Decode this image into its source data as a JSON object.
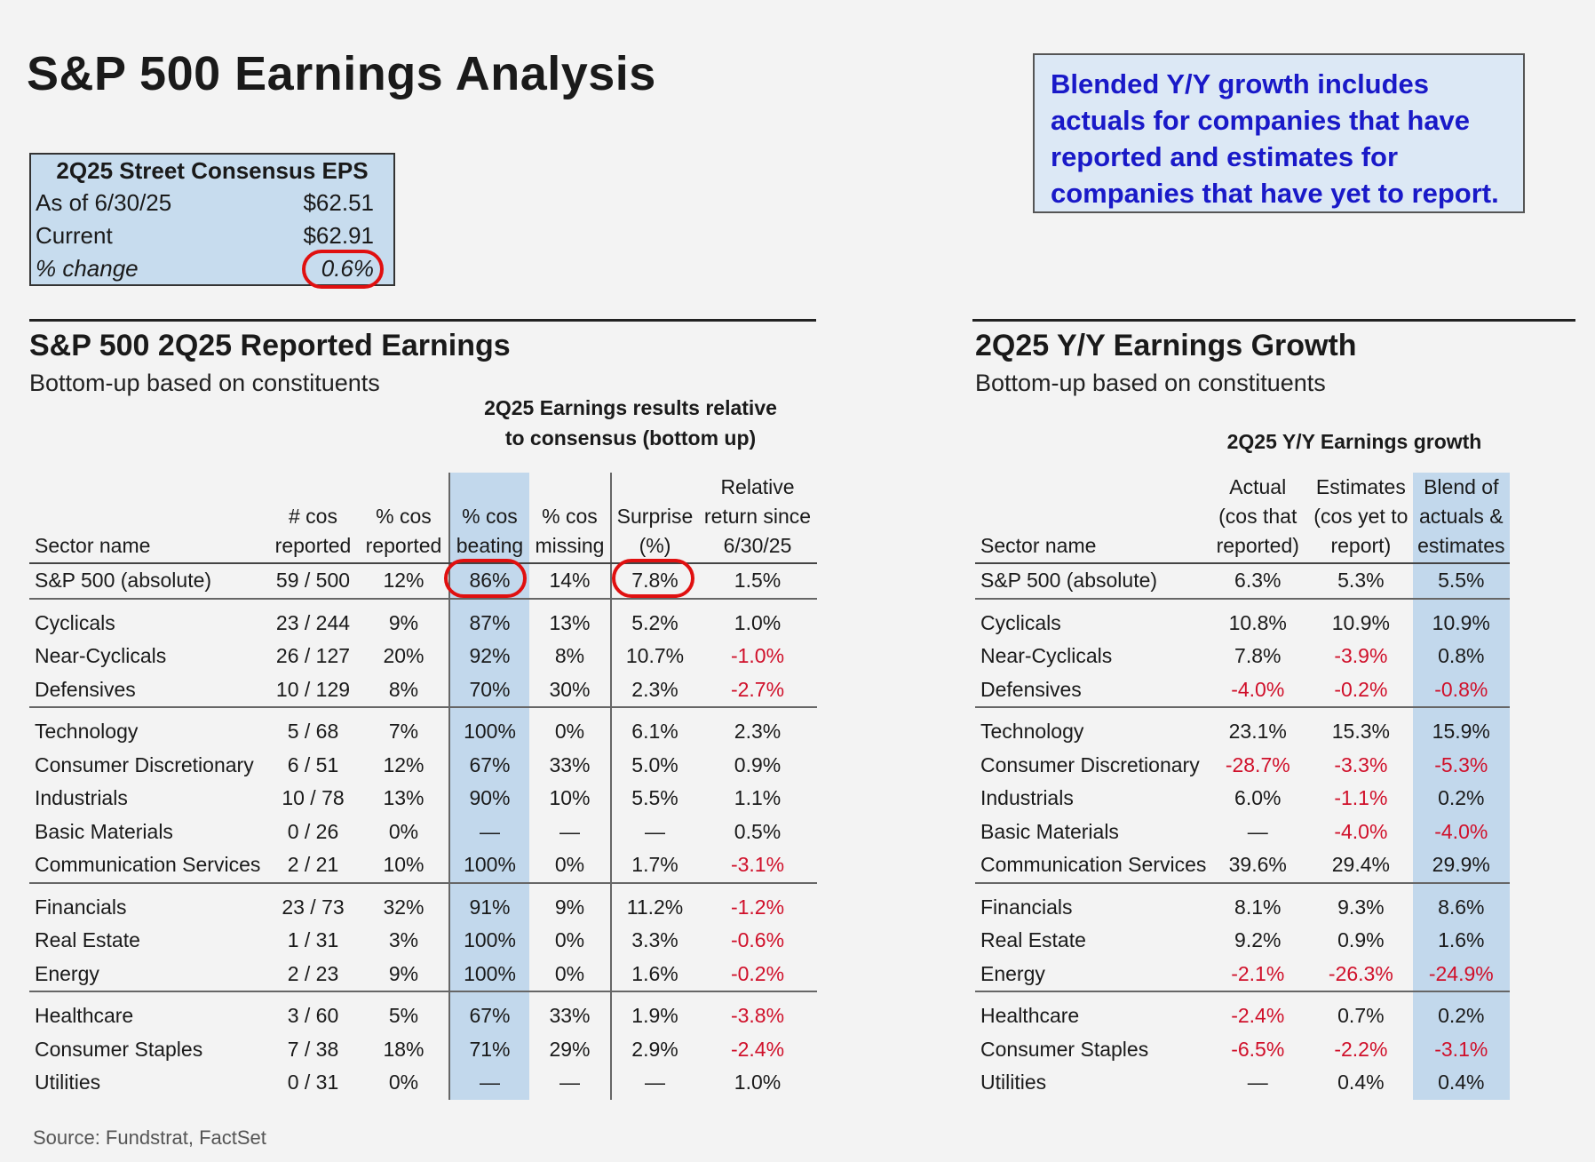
{
  "title": "S&P 500 Earnings Analysis",
  "note": "Blended Y/Y growth includes actuals for companies that have reported and estimates for companies that have yet to report.",
  "eps_box": {
    "header": "2Q25 Street Consensus EPS",
    "rows": [
      {
        "label": "As of 6/30/25",
        "value": "$62.51"
      },
      {
        "label": "Current",
        "value": "$62.91"
      },
      {
        "label": "% change",
        "value": "0.6%"
      }
    ]
  },
  "reported": {
    "title": "S&P 500 2Q25 Reported Earnings",
    "subtitle": "Bottom-up based on constituents",
    "group_header_1": "2Q25 Earnings results relative",
    "group_header_2": "to consensus (bottom up)",
    "columns": {
      "sector": "Sector name",
      "cos_reported_1": "# cos",
      "cos_reported_2": "reported",
      "pct_reported_1": "% cos",
      "pct_reported_2": "reported",
      "pct_beating_1": "% cos",
      "pct_beating_2": "beating",
      "pct_missing_1": "% cos",
      "pct_missing_2": "missing",
      "surprise_1": "Surprise",
      "surprise_2": "(%)",
      "relret_1": "Relative",
      "relret_2": "return since",
      "relret_3": "6/30/25"
    },
    "rows": [
      [
        "S&P 500 (absolute)",
        "59 / 500",
        "12%",
        "86%",
        "14%",
        "7.8%",
        "1.5%"
      ],
      [
        "Cyclicals",
        "23 / 244",
        "9%",
        "87%",
        "13%",
        "5.2%",
        "1.0%"
      ],
      [
        "Near-Cyclicals",
        "26 / 127",
        "20%",
        "92%",
        "8%",
        "10.7%",
        "-1.0%"
      ],
      [
        "Defensives",
        "10 / 129",
        "8%",
        "70%",
        "30%",
        "2.3%",
        "-2.7%"
      ],
      [
        "Technology",
        "5 / 68",
        "7%",
        "100%",
        "0%",
        "6.1%",
        "2.3%"
      ],
      [
        "Consumer Discretionary",
        "6 / 51",
        "12%",
        "67%",
        "33%",
        "5.0%",
        "0.9%"
      ],
      [
        "Industrials",
        "10 / 78",
        "13%",
        "90%",
        "10%",
        "5.5%",
        "1.1%"
      ],
      [
        "Basic Materials",
        "0 / 26",
        "0%",
        "—",
        "—",
        "—",
        "0.5%"
      ],
      [
        "Communication Services",
        "2 / 21",
        "10%",
        "100%",
        "0%",
        "1.7%",
        "-3.1%"
      ],
      [
        "Financials",
        "23 / 73",
        "32%",
        "91%",
        "9%",
        "11.2%",
        "-1.2%"
      ],
      [
        "Real Estate",
        "1 / 31",
        "3%",
        "100%",
        "0%",
        "3.3%",
        "-0.6%"
      ],
      [
        "Energy",
        "2 / 23",
        "9%",
        "100%",
        "0%",
        "1.6%",
        "-0.2%"
      ],
      [
        "Healthcare",
        "3 / 60",
        "5%",
        "67%",
        "33%",
        "1.9%",
        "-3.8%"
      ],
      [
        "Consumer Staples",
        "7 / 38",
        "18%",
        "71%",
        "29%",
        "2.9%",
        "-2.4%"
      ],
      [
        "Utilities",
        "0 / 31",
        "0%",
        "—",
        "—",
        "—",
        "1.0%"
      ]
    ]
  },
  "growth": {
    "title": "2Q25 Y/Y Earnings Growth",
    "subtitle": "Bottom-up based on constituents",
    "group_header": "2Q25 Y/Y Earnings growth",
    "columns": {
      "sector": "Sector name",
      "actual_1": "Actual",
      "actual_2": "(cos that",
      "actual_3": "reported)",
      "est_1": "Estimates",
      "est_2": "(cos yet to",
      "est_3": "report)",
      "blend_1": "Blend of",
      "blend_2": "actuals &",
      "blend_3": "estimates"
    },
    "rows": [
      [
        "S&P 500 (absolute)",
        "6.3%",
        "5.3%",
        "5.5%"
      ],
      [
        "Cyclicals",
        "10.8%",
        "10.9%",
        "10.9%"
      ],
      [
        "Near-Cyclicals",
        "7.8%",
        "-3.9%",
        "0.8%"
      ],
      [
        "Defensives",
        "-4.0%",
        "-0.2%",
        "-0.8%"
      ],
      [
        "Technology",
        "23.1%",
        "15.3%",
        "15.9%"
      ],
      [
        "Consumer Discretionary",
        "-28.7%",
        "-3.3%",
        "-5.3%"
      ],
      [
        "Industrials",
        "6.0%",
        "-1.1%",
        "0.2%"
      ],
      [
        "Basic Materials",
        "—",
        "-4.0%",
        "-4.0%"
      ],
      [
        "Communication Services",
        "39.6%",
        "29.4%",
        "29.9%"
      ],
      [
        "Financials",
        "8.1%",
        "9.3%",
        "8.6%"
      ],
      [
        "Real Estate",
        "9.2%",
        "0.9%",
        "1.6%"
      ],
      [
        "Energy",
        "-2.1%",
        "-26.3%",
        "-24.9%"
      ],
      [
        "Healthcare",
        "-2.4%",
        "0.7%",
        "0.2%"
      ],
      [
        "Consumer Staples",
        "-6.5%",
        "-2.2%",
        "-3.1%"
      ],
      [
        "Utilities",
        "—",
        "0.4%",
        "0.4%"
      ]
    ]
  },
  "source": "Source: Fundstrat, FactSet",
  "colors": {
    "negative": "#d0102a",
    "highlight_column": "#c2d8ec",
    "note_text": "#1919c8",
    "circle": "#e01010"
  }
}
